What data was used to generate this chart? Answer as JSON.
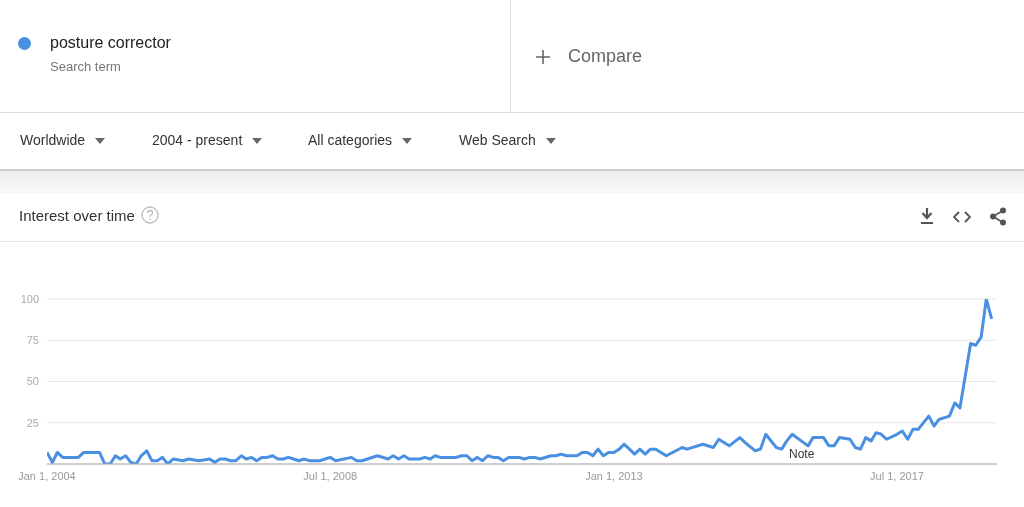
{
  "chart_data": {
    "type": "line",
    "title": "Interest over time",
    "legend": "top left",
    "grid": "y",
    "marker": "none",
    "line_style": "solid",
    "annotations": [
      "Search term",
      "Compare",
      "Worldwide",
      "2004 - present",
      "All categories",
      "Web Search",
      "Note"
    ],
    "xlim": [
      "2004-01",
      "2019-02"
    ],
    "xticks": [
      {
        "value": "2004-01-01",
        "label": "Jan 1, 2004"
      },
      {
        "value": "2008-07-01",
        "label": "Jul 1, 2008"
      },
      {
        "value": "2013-01-01",
        "label": "Jan 1, 2013"
      },
      {
        "value": "2017-07-01",
        "label": "Jul 1, 2017"
      }
    ],
    "ylim": [
      0,
      100
    ],
    "yticks": [
      25,
      50,
      75,
      100
    ],
    "series": [
      {
        "name": "posture corrector",
        "color": "#4a90e2",
        "x": [
          "2004-01",
          "2004-02",
          "2004-03",
          "2004-04",
          "2004-07",
          "2004-08",
          "2004-11",
          "2004-12",
          "2005-01",
          "2005-02",
          "2005-03",
          "2005-04",
          "2005-05",
          "2005-06",
          "2005-07",
          "2005-08",
          "2005-09",
          "2005-10",
          "2005-11",
          "2005-12",
          "2006-01",
          "2006-03",
          "2006-04",
          "2006-06",
          "2006-08",
          "2006-09",
          "2006-10",
          "2006-11",
          "2006-12",
          "2007-01",
          "2007-02",
          "2007-03",
          "2007-04",
          "2007-05",
          "2007-06",
          "2007-07",
          "2007-08",
          "2007-09",
          "2007-10",
          "2007-11",
          "2007-12",
          "2008-01",
          "2008-02",
          "2008-03",
          "2008-05",
          "2008-06",
          "2008-07",
          "2008-08",
          "2008-11",
          "2008-12",
          "2009-01",
          "2009-02",
          "2009-04",
          "2009-06",
          "2009-07",
          "2009-08",
          "2009-09",
          "2009-10",
          "2009-12",
          "2010-01",
          "2010-02",
          "2010-03",
          "2010-04",
          "2010-07",
          "2010-08",
          "2010-09",
          "2010-10",
          "2010-11",
          "2010-12",
          "2011-01",
          "2011-02",
          "2011-03",
          "2011-04",
          "2011-05",
          "2011-07",
          "2011-08",
          "2011-09",
          "2011-10",
          "2011-11",
          "2012-01",
          "2012-02",
          "2012-03",
          "2012-04",
          "2012-06",
          "2012-07",
          "2012-08",
          "2012-09",
          "2012-10",
          "2012-11",
          "2012-12",
          "2013-01",
          "2013-02",
          "2013-03",
          "2013-04",
          "2013-05",
          "2013-06",
          "2013-07",
          "2013-08",
          "2013-09",
          "2013-10",
          "2013-11",
          "2014-02",
          "2014-03",
          "2014-06",
          "2014-08",
          "2014-09",
          "2014-11",
          "2015-01",
          "2015-02",
          "2015-04",
          "2015-05",
          "2015-06",
          "2015-08",
          "2015-09",
          "2015-10",
          "2015-11",
          "2016-02",
          "2016-03",
          "2016-05",
          "2016-06",
          "2016-07",
          "2016-08",
          "2016-10",
          "2016-11",
          "2016-12",
          "2017-01",
          "2017-02",
          "2017-03",
          "2017-04",
          "2017-05",
          "2017-07",
          "2017-08",
          "2017-09",
          "2017-10",
          "2017-11",
          "2018-01",
          "2018-02",
          "2018-03",
          "2018-05",
          "2018-06",
          "2018-07",
          "2018-09",
          "2018-10",
          "2018-11",
          "2018-12",
          "2019-01"
        ],
        "values": [
          7,
          1,
          7,
          4,
          4,
          7,
          7,
          0,
          0,
          5,
          3,
          5,
          1,
          0,
          5,
          8,
          2,
          2,
          4,
          0,
          3,
          2,
          3,
          2,
          3,
          1,
          3,
          3,
          2,
          2,
          5,
          3,
          4,
          2,
          4,
          4,
          5,
          3,
          3,
          4,
          3,
          2,
          3,
          2,
          2,
          3,
          4,
          2,
          4,
          2,
          2,
          3,
          5,
          3,
          5,
          3,
          5,
          3,
          3,
          4,
          3,
          5,
          4,
          4,
          5,
          5,
          2,
          4,
          2,
          5,
          4,
          4,
          2,
          4,
          4,
          3,
          4,
          4,
          3,
          5,
          5,
          6,
          5,
          5,
          7,
          7,
          5,
          9,
          5,
          7,
          7,
          9,
          12,
          9,
          6,
          9,
          6,
          9,
          9,
          7,
          5,
          10,
          9,
          12,
          10,
          15,
          11,
          16,
          13,
          8,
          9,
          18,
          10,
          9,
          14,
          18,
          11,
          16,
          16,
          11,
          11,
          16,
          15,
          10,
          9,
          16,
          14,
          19,
          18,
          15,
          18,
          20,
          15,
          21,
          21,
          29,
          23,
          27,
          29,
          37,
          34,
          73,
          72,
          77,
          100,
          88
        ]
      }
    ]
  }
}
